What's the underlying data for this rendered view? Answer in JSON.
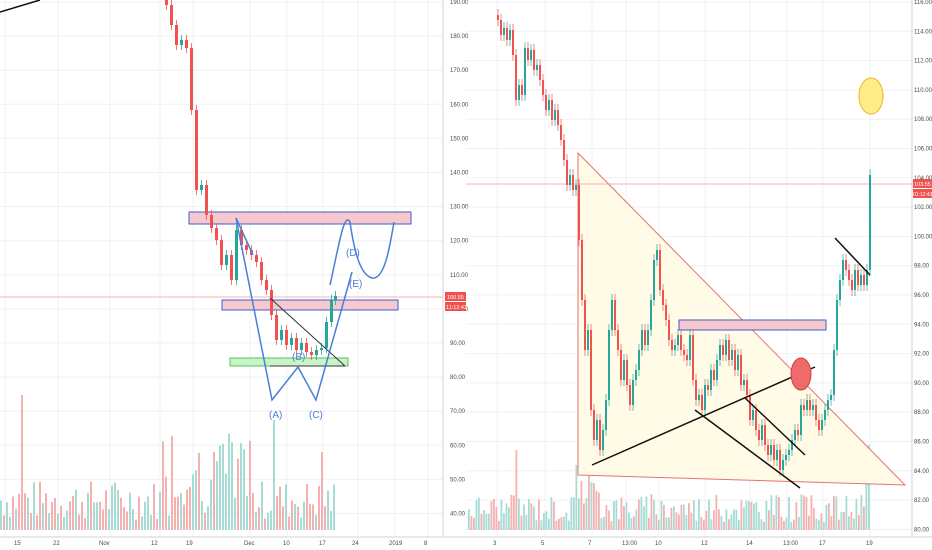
{
  "colors": {
    "up": "#26a69a",
    "down": "#ef5350",
    "grid": "#eef0f3",
    "axis_text": "#4a4a4a",
    "zone_fill": "#f8c8cf",
    "zone_stroke": "#3a5fcd",
    "green_zone": "#c8f5c8",
    "pattern_line": "#4a7fd4",
    "triangle_fill": "#fffbe6",
    "triangle_stroke": "#e57373",
    "price_tag": "#ef5350",
    "target_circle": "#ffee88"
  },
  "left_chart": {
    "price_axis": [
      "190.00",
      "180.00",
      "170.00",
      "160.00",
      "150.00",
      "140.00",
      "130.00",
      "120.00",
      "110.00",
      "100.00",
      "90.00",
      "80.00",
      "70.00",
      "60.00",
      "50.00",
      "40.00"
    ],
    "time_axis": [
      "15",
      "22",
      "Nov",
      "12",
      "19",
      "Dec",
      "10",
      "17",
      "24",
      "2019",
      "8"
    ],
    "price_tag": "100.55",
    "timer_tag": "11:12:43",
    "wave_labels": [
      "(A)",
      "(B)",
      "(C)",
      "(D)",
      "(E)"
    ]
  },
  "right_chart": {
    "price_axis": [
      "116.00",
      "114.00",
      "112.00",
      "110.00",
      "108.00",
      "106.00",
      "104.00",
      "102.00",
      "100.00",
      "98.00",
      "96.00",
      "94.00",
      "92.00",
      "90.00",
      "88.00",
      "86.00",
      "84.00",
      "82.00",
      "80.00"
    ],
    "time_axis": [
      "3",
      "5",
      "7",
      "13:00",
      "10",
      "12",
      "14",
      "13:00",
      "17",
      "19"
    ],
    "price_tag": "103.55",
    "timer_tag": "01:12:43"
  }
}
